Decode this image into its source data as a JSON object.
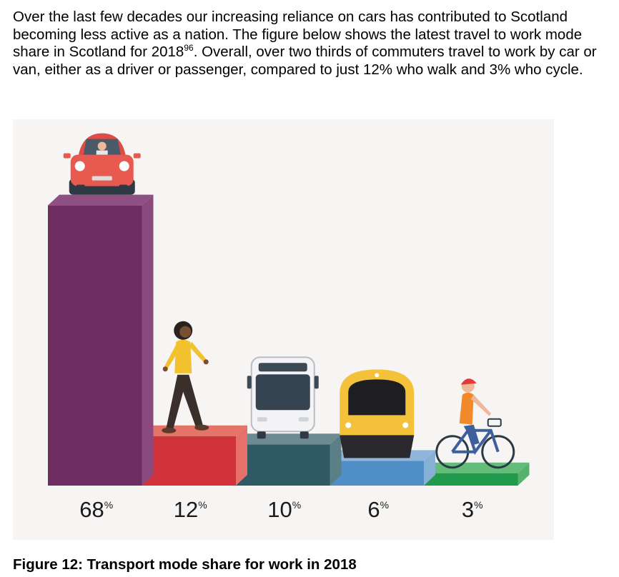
{
  "intro": {
    "part1": "Over the last few decades our increasing reliance on cars has contributed to Scotland becoming less active as a nation. The figure below shows the latest travel to work mode share in Scotland for 2018",
    "footnote": "96",
    "part2": ". Overall, over two thirds of commuters travel to work by car or van, either as a driver or passenger, compared to just 12% who walk and 3% who cycle."
  },
  "chart_data": {
    "type": "bar",
    "title": "Transport mode share for work in 2018",
    "categories": [
      "Car or van",
      "Walk",
      "Bus",
      "Train",
      "Cycle"
    ],
    "icons": [
      "car-icon",
      "walking-person-icon",
      "bus-icon",
      "train-icon",
      "cyclist-icon"
    ],
    "values": [
      68,
      12,
      10,
      6,
      3
    ],
    "value_labels": [
      "68",
      "12",
      "10",
      "6",
      "3"
    ],
    "unit_suffix": "%",
    "ylim": [
      0,
      100
    ],
    "xlabel": "",
    "ylabel": "",
    "grid": false,
    "colors": {
      "front": [
        "#6e2e62",
        "#d0323b",
        "#2f5963",
        "#4f8fc6",
        "#1f9b4b"
      ],
      "top": [
        "#8e4f82",
        "#e47468",
        "#6c8a90",
        "#8fb5dc",
        "#62bc7a"
      ],
      "side": [
        "#8a4a7e",
        "#e8706a",
        "#5a7f86",
        "#86b0d6",
        "#55b26c"
      ]
    }
  },
  "caption": "Figure 12: Transport mode share for work in 2018"
}
